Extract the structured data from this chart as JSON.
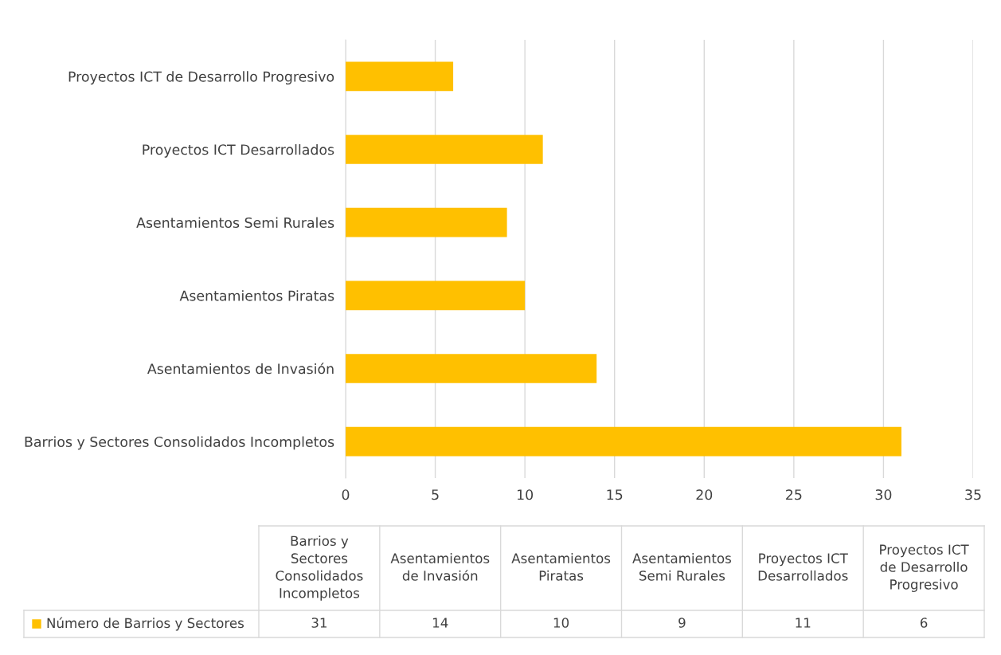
{
  "chart_data": [
    {
      "type": "bar",
      "orientation": "horizontal",
      "categories": [
        "Proyectos ICT de Desarrollo Progresivo",
        "Proyectos ICT Desarrollados",
        "Asentamientos Semi Rurales",
        "Asentamientos Piratas",
        "Asentamientos de Invasión",
        "Barrios y Sectores Consolidados Incompletos"
      ],
      "series": [
        {
          "color": "#ffc000",
          "values": [
            6,
            11,
            9,
            10,
            14,
            31
          ]
        }
      ],
      "xlim": [
        0,
        35
      ],
      "xticks": [
        0,
        5,
        10,
        15,
        20,
        25,
        30,
        35
      ],
      "grid": "x"
    },
    {
      "type": "other",
      "categories": [
        "Barrios y Sectores Consolidados Incompletos",
        "Asentamientos de Invasión",
        "Asentamientos Piratas",
        "Asentamientos Semi Rurales",
        "Proyectos ICT Desarrollados",
        "Proyectos ICT de Desarrollo Progresivo"
      ],
      "series": [
        {
          "name": "Número de Barrios y Sectores",
          "color": "#ffc000",
          "values": [
            31,
            14,
            10,
            9,
            11,
            6
          ]
        }
      ],
      "legend": "bottom left",
      "data_labels": true
    }
  ]
}
